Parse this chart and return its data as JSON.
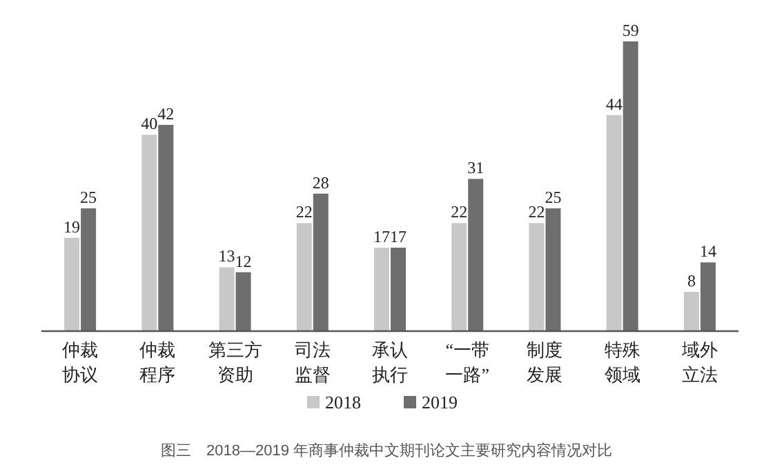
{
  "chart_data": {
    "type": "bar",
    "categories": [
      "仲裁协议",
      "仲裁程序",
      "第三方资助",
      "司法监督",
      "承认执行",
      "“一带一路”",
      "制度发展",
      "特殊领域",
      "域外立法"
    ],
    "series": [
      {
        "name": "2018",
        "color": "#c8c8c8",
        "values": [
          19,
          40,
          13,
          22,
          17,
          22,
          22,
          44,
          8
        ]
      },
      {
        "name": "2019",
        "color": "#6e6e6e",
        "values": [
          25,
          42,
          12,
          28,
          17,
          31,
          25,
          59,
          14
        ]
      }
    ],
    "data_labels": true,
    "legend": "bottom",
    "annotations": [
      "图三　2018—2019 年商事仲裁中文期刊论文主要研究内容情况对比"
    ]
  }
}
